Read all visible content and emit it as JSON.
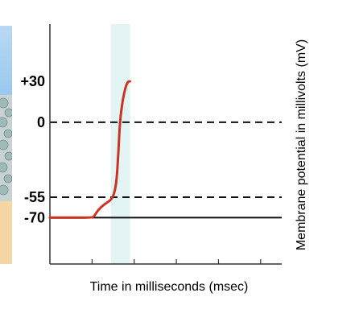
{
  "chart_data": {
    "type": "line",
    "title": "",
    "xlabel": "Time in milliseconds (msec)",
    "ylabel": "Membrane potential in millivolts (mV)",
    "y_tick_labels": [
      {
        "label": "+30",
        "value": 30
      },
      {
        "label": "0",
        "value": 0
      },
      {
        "label": "-55",
        "value": -55
      },
      {
        "label": "-70",
        "value": -70
      }
    ],
    "ylim": [
      -104,
      72
    ],
    "xlim": [
      0,
      5.5
    ],
    "x_ticks": [
      1,
      2,
      3,
      4,
      5
    ],
    "reference_lines": [
      {
        "value": 0,
        "style": "dashed"
      },
      {
        "value": -55,
        "style": "dashed"
      },
      {
        "value": -70,
        "style": "solid"
      }
    ],
    "highlight_band": {
      "x_start": 1.45,
      "x_end": 1.9
    },
    "series": [
      {
        "x": [
          0,
          0.4,
          1.0,
          1.05,
          1.15,
          1.3,
          1.45,
          1.52,
          1.58,
          1.62,
          1.66,
          1.72,
          1.78,
          1.82,
          1.86,
          1.9
        ],
        "y": [
          -70,
          -70,
          -70,
          -69,
          -64,
          -60,
          -57,
          -53,
          -44,
          -25,
          0,
          15,
          24,
          28,
          30,
          30
        ]
      }
    ],
    "colors": {
      "series": "#cc3322",
      "band": "#e3f4f4",
      "axis": "#333333",
      "reference": "#111111",
      "left_top_gradient_start": "#b9d9f2",
      "left_top_gradient_end": "#8fc3ec",
      "left_bottom": "#f5d7a6",
      "membrane_blob": "#9fb8b8"
    }
  }
}
